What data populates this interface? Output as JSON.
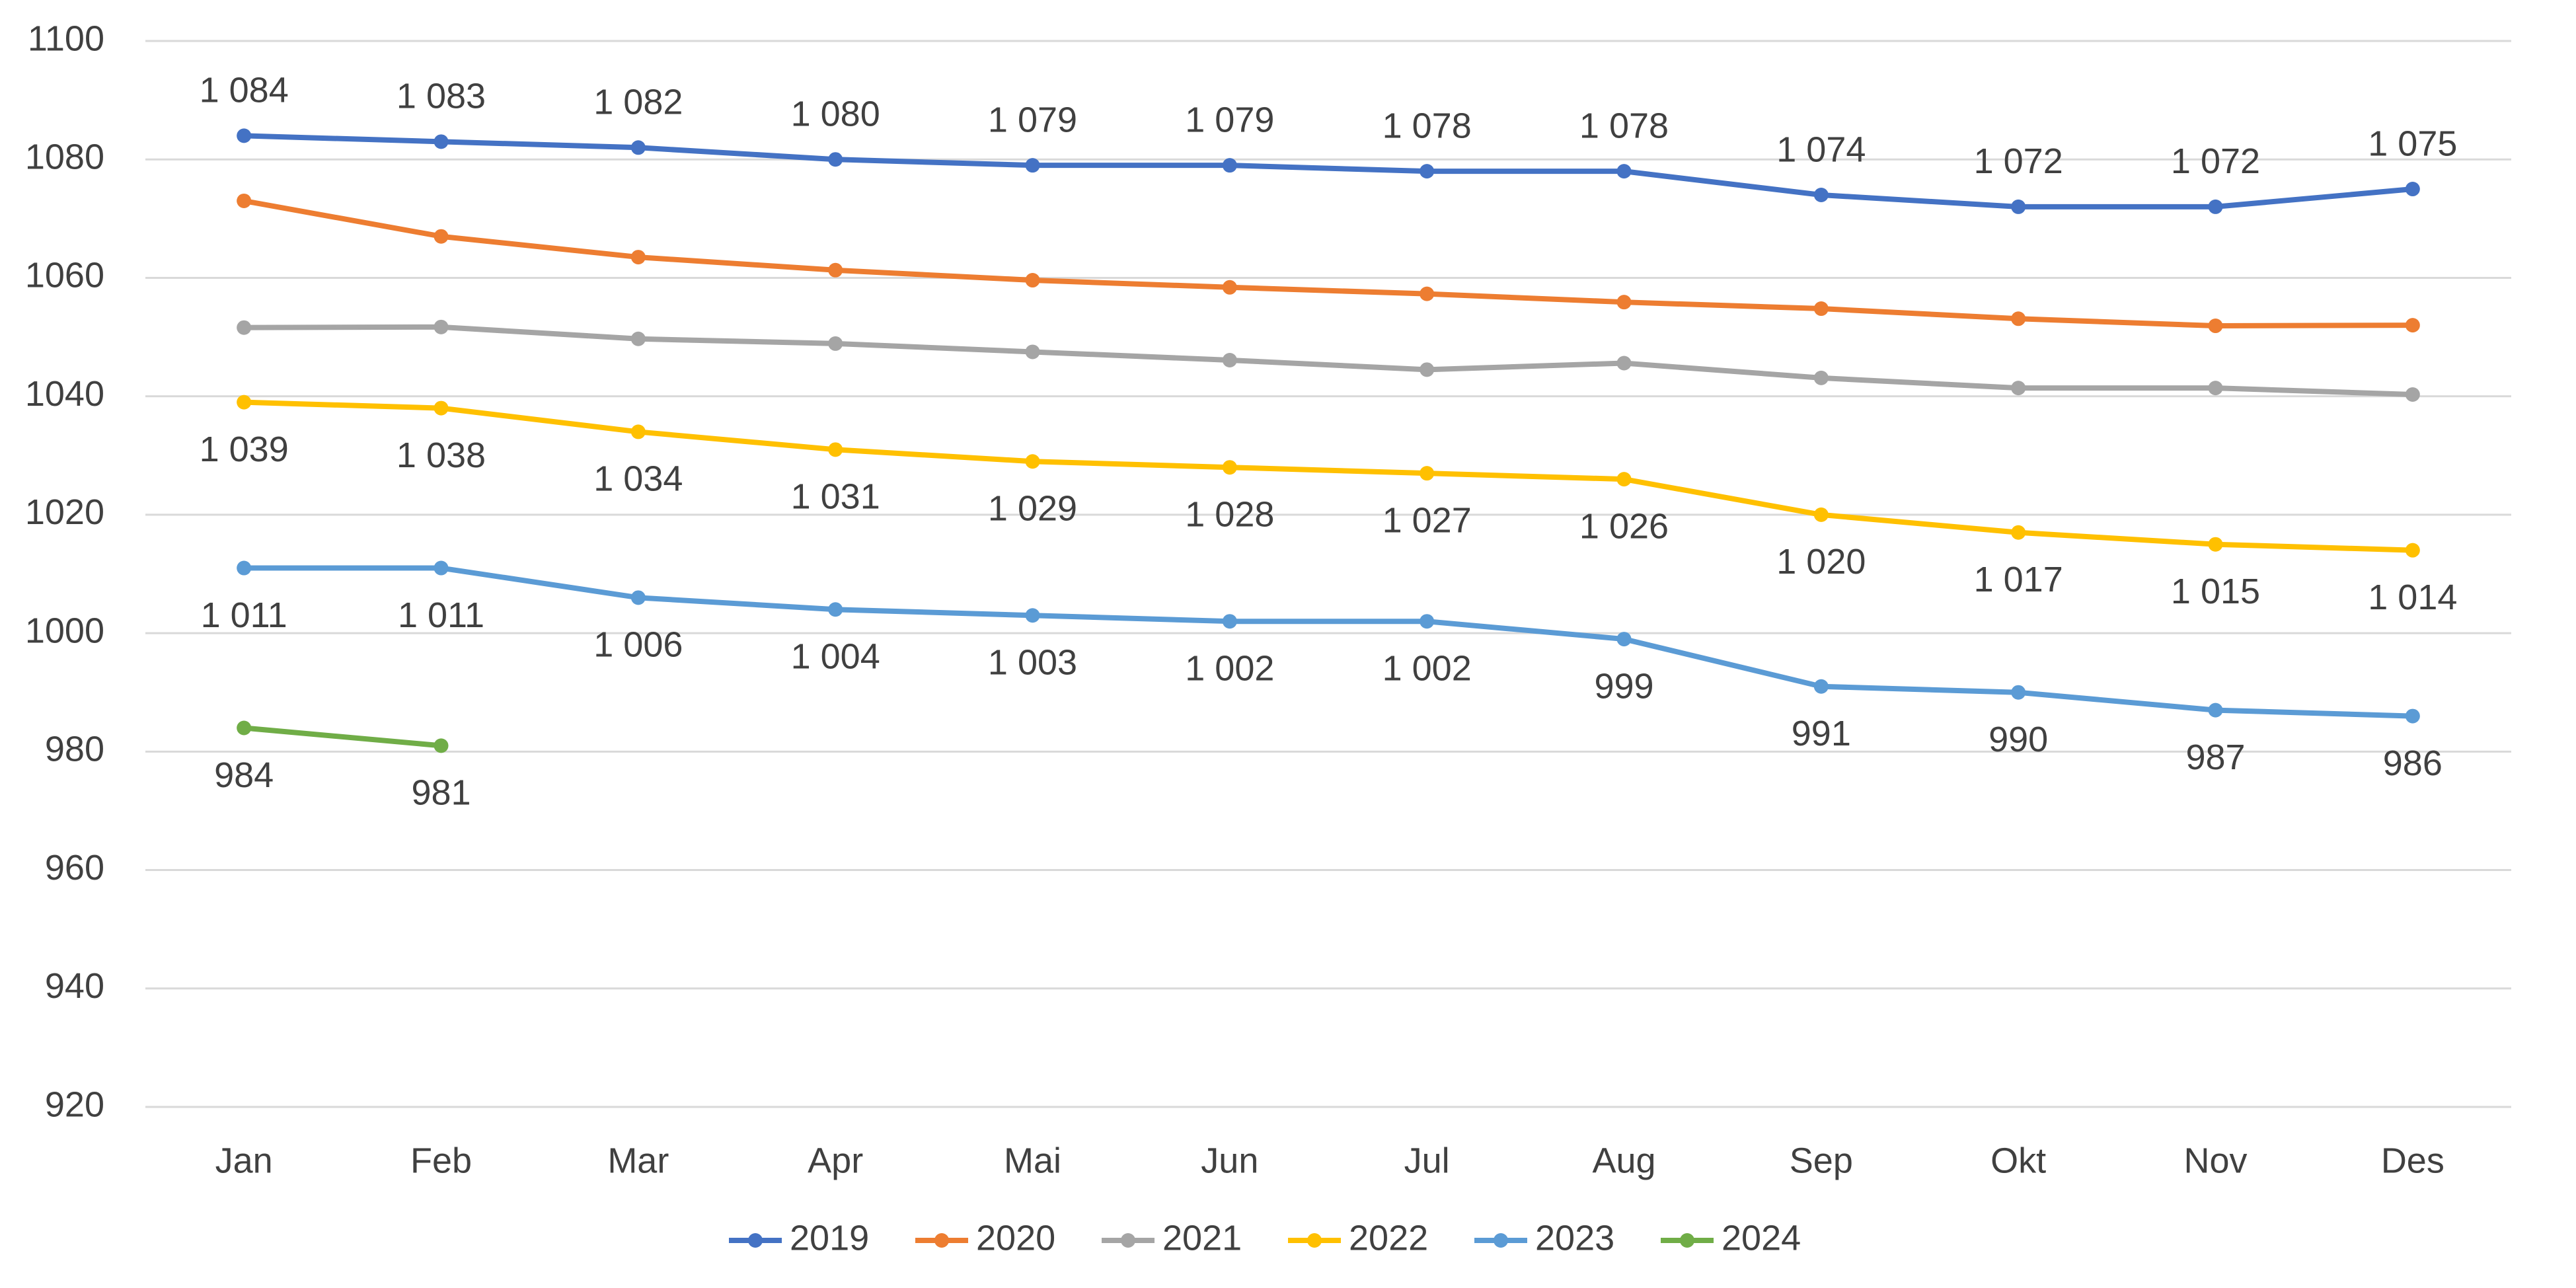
{
  "chart_data": {
    "type": "line",
    "categories": [
      "Jan",
      "Feb",
      "Mar",
      "Apr",
      "Mai",
      "Jun",
      "Jul",
      "Aug",
      "Sep",
      "Okt",
      "Nov",
      "Des"
    ],
    "ylim": [
      920,
      1100
    ],
    "yticks": [
      920,
      940,
      960,
      980,
      1000,
      1020,
      1040,
      1060,
      1080,
      1100
    ],
    "grid": true,
    "legend": "bottom",
    "series": [
      {
        "name": "2019",
        "color": "#4472c4",
        "values": [
          1084,
          1083,
          1082,
          1080,
          1079,
          1079,
          1078,
          1078,
          1074,
          1072,
          1072,
          1075
        ],
        "value_labels": [
          "1 084",
          "1 083",
          "1 082",
          "1 080",
          "1 079",
          "1 079",
          "1 078",
          "1 078",
          "1 074",
          "1 072",
          "1 072",
          "1 075"
        ]
      },
      {
        "name": "2020",
        "color": "#ed7d31",
        "values": [
          1073,
          1067,
          1063.5,
          1061.3,
          1059.6,
          1058.4,
          1057.3,
          1055.9,
          1054.8,
          1053.1,
          1051.9,
          1052
        ]
      },
      {
        "name": "2021",
        "color": "#a5a5a5",
        "values": [
          1051.6,
          1051.7,
          1049.7,
          1048.9,
          1047.5,
          1046.1,
          1044.5,
          1045.6,
          1043.1,
          1041.4,
          1041.4,
          1040.3
        ]
      },
      {
        "name": "2022",
        "color": "#ffc000",
        "values": [
          1039,
          1038,
          1034,
          1031,
          1029,
          1028,
          1027,
          1026,
          1020,
          1017,
          1015,
          1014
        ],
        "value_labels": [
          "1 039",
          "1 038",
          "1 034",
          "1 031",
          "1 029",
          "1 028",
          "1 027",
          "1 026",
          "1 020",
          "1 017",
          "1 015",
          "1 014"
        ]
      },
      {
        "name": "2023",
        "color": "#5b9bd5",
        "values": [
          1011,
          1011,
          1006,
          1004,
          1003,
          1002,
          1002,
          999,
          991,
          990,
          987,
          986
        ],
        "value_labels": [
          "1 011",
          "1 011",
          "1 006",
          "1 004",
          "1 003",
          "1 002",
          "1 002",
          "999",
          "991",
          "990",
          "987",
          "986"
        ]
      },
      {
        "name": "2024",
        "color": "#70ad47",
        "values": [
          984,
          981,
          null,
          null,
          null,
          null,
          null,
          null,
          null,
          null,
          null,
          null
        ],
        "value_labels": [
          "984",
          "981",
          null,
          null,
          null,
          null,
          null,
          null,
          null,
          null,
          null,
          null
        ]
      }
    ]
  }
}
